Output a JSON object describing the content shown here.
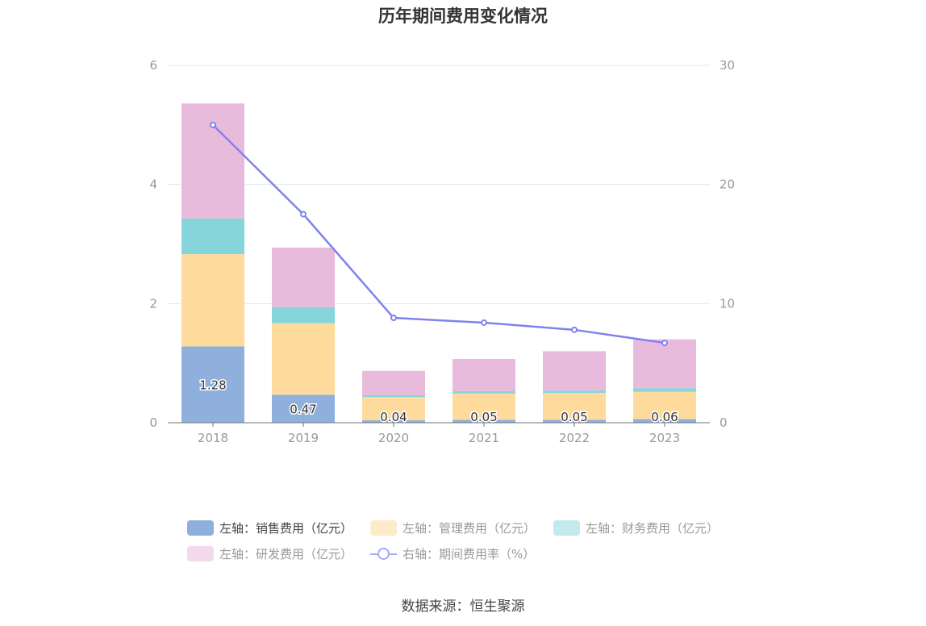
{
  "title": "历年期间费用变化情况",
  "source": "数据来源：恒生聚源",
  "colors": {
    "sales": "#8fafdc",
    "admin": "#fedb9d",
    "finance": "#86d5da",
    "rd": "#e8bbdc",
    "rate": "#7f83ee",
    "grid": "#e3e5ef",
    "axis_text": "#999999"
  },
  "chart_data": {
    "type": "bar",
    "stacked": true,
    "categories": [
      "2018",
      "2019",
      "2020",
      "2021",
      "2022",
      "2023"
    ],
    "y_left": {
      "ticks": [
        "0",
        "2",
        "4",
        "6"
      ],
      "ylim": [
        0,
        6
      ]
    },
    "y_right": {
      "ticks": [
        "0",
        "10",
        "20",
        "30"
      ],
      "ylim": [
        0,
        30
      ]
    },
    "series": [
      {
        "name": "左轴：销售费用（亿元）",
        "axis": "left",
        "type": "bar",
        "color": "sales",
        "values": [
          1.28,
          0.47,
          0.04,
          0.05,
          0.05,
          0.06
        ],
        "labels": [
          "1.28",
          "0.47",
          "0.04",
          "0.05",
          "0.05",
          "0.06"
        ]
      },
      {
        "name": "左轴：管理费用（亿元）",
        "axis": "left",
        "type": "bar",
        "color": "admin",
        "values": [
          1.55,
          1.2,
          0.39,
          0.44,
          0.45,
          0.46
        ]
      },
      {
        "name": "左轴：财务费用（亿元）",
        "axis": "left",
        "type": "bar",
        "color": "finance",
        "values": [
          0.6,
          0.27,
          0.03,
          0.04,
          0.04,
          0.06
        ]
      },
      {
        "name": "左轴：研发费用（亿元）",
        "axis": "left",
        "type": "bar",
        "color": "rd",
        "values": [
          1.93,
          1.0,
          0.41,
          0.54,
          0.66,
          0.82
        ]
      },
      {
        "name": "右轴：期间费用率（%）",
        "axis": "right",
        "type": "line",
        "color": "rate",
        "values": [
          25.0,
          17.5,
          8.8,
          8.4,
          7.8,
          6.7
        ]
      }
    ],
    "grid": true,
    "legend_position": "bottom"
  }
}
